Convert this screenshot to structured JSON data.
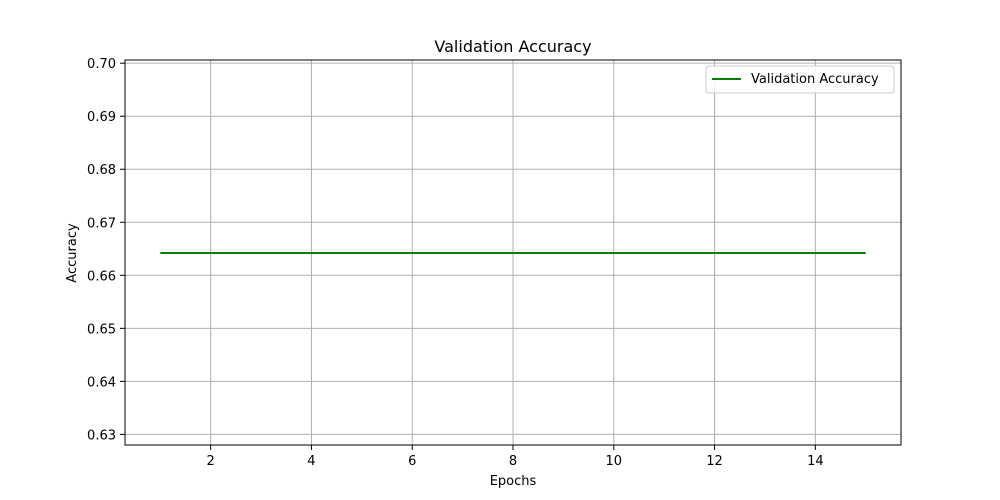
{
  "chart_data": {
    "type": "line",
    "title": "Validation Accuracy",
    "xlabel": "Epochs",
    "ylabel": "Accuracy",
    "x": [
      1,
      2,
      3,
      4,
      5,
      6,
      7,
      8,
      9,
      10,
      11,
      12,
      13,
      14,
      15
    ],
    "series": [
      {
        "name": "Validation Accuracy",
        "color": "#008000",
        "values": [
          0.6642,
          0.6642,
          0.6642,
          0.6642,
          0.6642,
          0.6642,
          0.6642,
          0.6642,
          0.6642,
          0.6642,
          0.6642,
          0.6642,
          0.6642,
          0.6642,
          0.6642
        ]
      }
    ],
    "xlim": [
      0.3,
      15.7
    ],
    "ylim": [
      0.628,
      0.7006
    ],
    "xticks": [
      2,
      4,
      6,
      8,
      10,
      12,
      14
    ],
    "xtick_labels": [
      "2",
      "4",
      "6",
      "8",
      "10",
      "12",
      "14"
    ],
    "yticks": [
      0.63,
      0.64,
      0.65,
      0.66,
      0.67,
      0.68,
      0.69,
      0.7
    ],
    "ytick_labels": [
      "0.63",
      "0.64",
      "0.65",
      "0.66",
      "0.67",
      "0.68",
      "0.69",
      "0.70"
    ],
    "grid": true,
    "legend_position": "top-right",
    "grid_color": "#b0b0b0",
    "axis_color": "#000000"
  }
}
